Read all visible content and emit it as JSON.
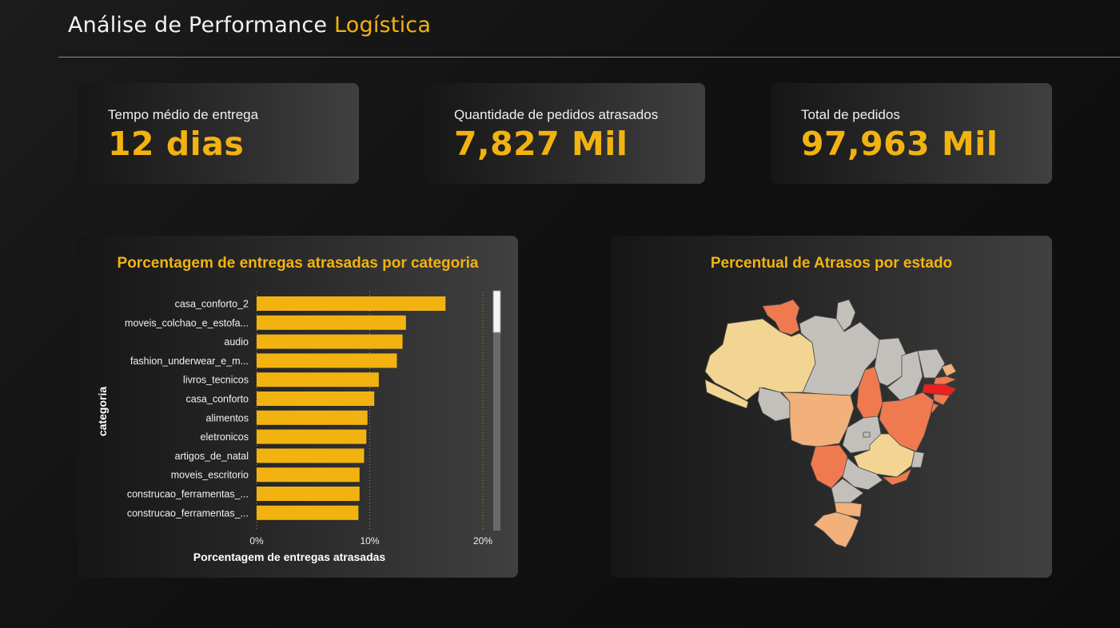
{
  "header": {
    "title_main": "Análise de Performance ",
    "title_accent": "Logística"
  },
  "kpis": [
    {
      "label": "Tempo médio de entrega",
      "value": "12 dias"
    },
    {
      "label": "Quantidade de pedidos atrasados",
      "value": "7,827 Mil"
    },
    {
      "label": "Total de pedidos",
      "value": "97,963 Mil"
    }
  ],
  "colors": {
    "accent": "#f2b311",
    "bar": "#f2b311",
    "map_gray": "#c3bfba",
    "map_light": "#f2d592",
    "map_mid": "#f2b07a",
    "map_orange": "#f07a4f",
    "map_red": "#ee1f1f"
  },
  "bar_panel": {
    "title": "Porcentagem de entregas atrasadas por categoria",
    "chart_data": {
      "type": "bar",
      "orientation": "horizontal",
      "title": "Porcentagem de entregas atrasadas por categoria",
      "categories": [
        "casa_conforto_2",
        "moveis_colchao_e_estofa...",
        "audio",
        "fashion_underwear_e_m...",
        "livros_tecnicos",
        "casa_conforto",
        "alimentos",
        "eletronicos",
        "artigos_de_natal",
        "moveis_escritorio",
        "construcao_ferramentas_...",
        "construcao_ferramentas_..."
      ],
      "values": [
        16.7,
        13.2,
        12.9,
        12.4,
        10.8,
        10.4,
        9.8,
        9.7,
        9.5,
        9.1,
        9.1,
        9.0
      ],
      "xlabel": "Porcentagem de entregas atrasadas",
      "ylabel": "categoria",
      "xlim": [
        0,
        20
      ],
      "xticks": [
        "0%",
        "10%",
        "20%"
      ],
      "grid": "vertical-dotted"
    }
  },
  "map_panel": {
    "title": "Percentual de Atrasos por estado"
  }
}
